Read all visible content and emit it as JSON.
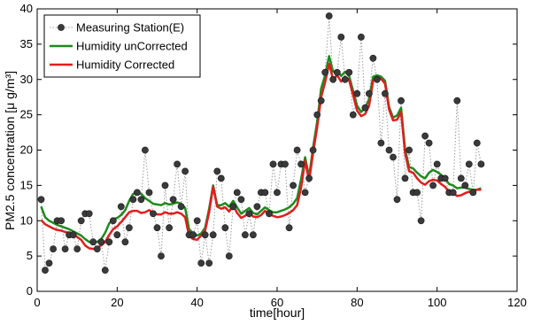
{
  "chart_data": {
    "type": "line",
    "xlabel": "time[hour]",
    "ylabel": "PM2.5 concentration [μ g/m³]",
    "xlim": [
      0,
      120
    ],
    "ylim": [
      0,
      40
    ],
    "xticks": [
      0,
      20,
      40,
      60,
      80,
      100,
      120
    ],
    "yticks": [
      0,
      5,
      10,
      15,
      20,
      25,
      30,
      35,
      40
    ],
    "grid": false,
    "legend_position": "top-left",
    "series": [
      {
        "name": "Measuring Station(E)",
        "style": "dotted-markers",
        "color": "#3a3a3a",
        "x": [
          1,
          2,
          3,
          4,
          5,
          6,
          7,
          8,
          9,
          10,
          11,
          12,
          13,
          14,
          15,
          16,
          17,
          18,
          19,
          20,
          21,
          22,
          23,
          24,
          25,
          26,
          27,
          28,
          29,
          30,
          31,
          32,
          33,
          34,
          35,
          36,
          37,
          38,
          39,
          40,
          41,
          42,
          43,
          44,
          45,
          46,
          47,
          48,
          49,
          50,
          51,
          52,
          53,
          54,
          55,
          56,
          57,
          58,
          59,
          60,
          61,
          62,
          63,
          64,
          65,
          66,
          67,
          68,
          69,
          70,
          71,
          72,
          73,
          74,
          75,
          76,
          77,
          78,
          79,
          80,
          81,
          82,
          83,
          84,
          85,
          86,
          87,
          88,
          89,
          90,
          91,
          92,
          93,
          94,
          95,
          96,
          97,
          98,
          99,
          100,
          101,
          102,
          103,
          104,
          105,
          106,
          107,
          108,
          109,
          110,
          111
        ],
        "y": [
          13,
          3,
          4,
          6,
          10,
          10,
          6,
          8,
          8,
          6,
          10,
          11,
          11,
          7,
          6,
          7,
          3,
          7,
          10,
          8,
          12,
          7,
          9,
          13,
          14,
          13,
          20,
          14,
          11,
          9,
          5,
          15,
          9,
          13,
          18,
          12,
          17,
          8,
          8,
          10,
          4,
          8,
          4,
          8,
          17,
          16,
          9,
          5,
          12,
          14,
          13,
          8,
          11,
          8,
          12,
          14,
          14,
          11,
          18,
          14,
          18,
          18,
          9,
          15,
          20,
          18,
          14,
          16,
          20,
          25,
          27,
          31,
          39,
          30,
          31,
          36,
          30,
          31,
          25,
          28,
          36,
          26,
          28,
          33,
          30,
          21,
          28,
          20,
          19,
          13,
          27,
          16,
          20,
          14,
          14,
          10,
          22,
          21,
          15,
          18,
          16,
          16,
          14,
          14,
          27,
          16,
          15,
          18,
          14,
          21,
          18
        ]
      },
      {
        "name": "Humidity unCorrected",
        "style": "line",
        "color": "#1e8a1e",
        "x": [
          1,
          2,
          3,
          4,
          5,
          6,
          7,
          8,
          9,
          10,
          11,
          12,
          13,
          14,
          15,
          16,
          17,
          18,
          19,
          20,
          21,
          22,
          23,
          24,
          25,
          26,
          27,
          28,
          29,
          30,
          31,
          32,
          33,
          34,
          35,
          36,
          37,
          38,
          39,
          40,
          41,
          42,
          43,
          44,
          45,
          46,
          47,
          48,
          49,
          50,
          51,
          52,
          53,
          54,
          55,
          56,
          57,
          58,
          59,
          60,
          61,
          62,
          63,
          64,
          65,
          66,
          67,
          68,
          69,
          70,
          71,
          72,
          73,
          74,
          75,
          76,
          77,
          78,
          79,
          80,
          81,
          82,
          83,
          84,
          85,
          86,
          87,
          88,
          89,
          90,
          91,
          92,
          93,
          94,
          95,
          96,
          97,
          98,
          99,
          100,
          101,
          102,
          103,
          104,
          105,
          106,
          107,
          108,
          109,
          110,
          111
        ],
        "y": [
          12,
          10.5,
          10,
          9.7,
          9.4,
          9.2,
          9,
          8.8,
          8.5,
          8.2,
          7.9,
          7.4,
          7,
          6.9,
          7,
          7.4,
          8.3,
          9.6,
          10.2,
          10.4,
          10.8,
          11.5,
          12.8,
          13.8,
          14,
          13.8,
          13.2,
          12.8,
          12.4,
          12.3,
          12.2,
          12.5,
          12.3,
          12.4,
          12.6,
          12.4,
          11.8,
          8.8,
          8.2,
          7.9,
          8.2,
          9,
          11.7,
          15,
          12.2,
          12.2,
          12.5,
          12,
          12.8,
          11.9,
          11,
          11.4,
          11.8,
          11.1,
          10.9,
          11.4,
          11.9,
          11.5,
          11.2,
          11.2,
          11.4,
          11.6,
          11.9,
          12.4,
          13.2,
          15.9,
          19,
          16.2,
          20.4,
          24,
          28.7,
          30.6,
          33.3,
          31.1,
          31.3,
          30.5,
          31.1,
          30.5,
          28.4,
          26.3,
          25.4,
          26,
          27.2,
          30.4,
          30.6,
          30.4,
          29.8,
          26.1,
          24.6,
          24.9,
          26,
          20.1,
          17.6,
          17.4,
          16.8,
          16.3,
          16,
          16.8,
          17.2,
          16.9,
          16.5,
          16,
          15.2,
          15,
          14.6,
          14.7,
          14.7,
          14.5,
          14.4,
          14.4,
          14.6
        ]
      },
      {
        "name": "Humidity Corrected",
        "style": "line",
        "color": "#e01e1e",
        "x": [
          1,
          2,
          3,
          4,
          5,
          6,
          7,
          8,
          9,
          10,
          11,
          12,
          13,
          14,
          15,
          16,
          17,
          18,
          19,
          20,
          21,
          22,
          23,
          24,
          25,
          26,
          27,
          28,
          29,
          30,
          31,
          32,
          33,
          34,
          35,
          36,
          37,
          38,
          39,
          40,
          41,
          42,
          43,
          44,
          45,
          46,
          47,
          48,
          49,
          50,
          51,
          52,
          53,
          54,
          55,
          56,
          57,
          58,
          59,
          60,
          61,
          62,
          63,
          64,
          65,
          66,
          67,
          68,
          69,
          70,
          71,
          72,
          73,
          74,
          75,
          76,
          77,
          78,
          79,
          80,
          81,
          82,
          83,
          84,
          85,
          86,
          87,
          88,
          89,
          90,
          91,
          92,
          93,
          94,
          95,
          96,
          97,
          98,
          99,
          100,
          101,
          102,
          103,
          104,
          105,
          106,
          107,
          108,
          109,
          110,
          111
        ],
        "y": [
          10.1,
          9.5,
          9.2,
          8.9,
          8.7,
          8.6,
          8.4,
          8.3,
          8.1,
          7.7,
          7.3,
          6.5,
          6.1,
          6,
          6.2,
          6.5,
          7,
          8,
          8.8,
          9.2,
          9.8,
          10.5,
          11.2,
          11.4,
          11.4,
          11.1,
          11.2,
          11.5,
          11.1,
          10.9,
          10.9,
          11.2,
          11,
          11,
          11.2,
          11,
          10.5,
          7.8,
          7.4,
          7.3,
          7.9,
          8.6,
          11.2,
          14.8,
          12,
          11.7,
          11.9,
          11.3,
          12.2,
          11.1,
          10.4,
          10.7,
          11.2,
          10.6,
          10.5,
          10.8,
          11.4,
          10.9,
          10.7,
          10.5,
          10.6,
          10.8,
          11.1,
          11.5,
          12.2,
          14.7,
          18.5,
          15.6,
          19.6,
          23.2,
          27.5,
          29.6,
          32.2,
          30,
          30.6,
          29.7,
          30.4,
          29.9,
          27.8,
          25.6,
          24.8,
          25.1,
          26.3,
          29.8,
          30.3,
          30.1,
          29.4,
          25.7,
          24.2,
          24.3,
          25.4,
          19.6,
          17,
          16.8,
          16,
          15.4,
          15.1,
          15.6,
          15.8,
          15.7,
          15.2,
          14.8,
          14.1,
          13.9,
          13.5,
          13.6,
          13.9,
          14.1,
          14.2,
          14.4,
          14.4
        ]
      }
    ]
  }
}
